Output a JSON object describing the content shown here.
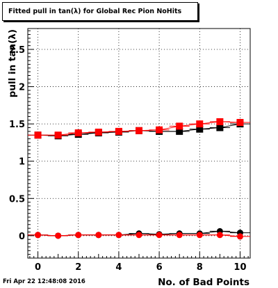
{
  "chart_data": {
    "type": "scatter",
    "title": "Fitted pull in tan(λ) for Global Rec Pion NoHits",
    "xlabel": "No. of Bad Points",
    "ylabel": "pull in tan(λ)",
    "xlim": [
      -0.5,
      10.5
    ],
    "ylim": [
      -0.3,
      2.78
    ],
    "x_ticks": [
      0,
      2,
      4,
      6,
      8,
      10
    ],
    "x_tick_labels": [
      "0",
      "2",
      "4",
      "6",
      "8",
      "10"
    ],
    "y_ticks": [
      0,
      0.5,
      1,
      1.5,
      2,
      2.5
    ],
    "y_tick_labels": [
      "0",
      "0.5",
      "1",
      "1.5",
      "2",
      "2.5"
    ],
    "grid": true,
    "legend": "none",
    "x": [
      0,
      1,
      2,
      3,
      4,
      5,
      6,
      7,
      8,
      9,
      10
    ],
    "series": [
      {
        "marker": "square",
        "color": "#000000",
        "values": [
          1.35,
          1.34,
          1.36,
          1.38,
          1.39,
          1.41,
          1.4,
          1.4,
          1.43,
          1.45,
          1.5
        ]
      },
      {
        "marker": "square",
        "color": "#ff0000",
        "values": [
          1.35,
          1.35,
          1.38,
          1.39,
          1.4,
          1.41,
          1.42,
          1.47,
          1.5,
          1.53,
          1.52
        ]
      },
      {
        "marker": "circle",
        "color": "#000000",
        "values": [
          0.01,
          0.0,
          0.01,
          0.01,
          0.01,
          0.03,
          0.02,
          0.03,
          0.03,
          0.06,
          0.04
        ]
      },
      {
        "marker": "circle",
        "color": "#ff0000",
        "values": [
          0.01,
          0.0,
          0.01,
          0.01,
          0.01,
          0.01,
          0.01,
          0.01,
          0.01,
          0.01,
          -0.01
        ]
      }
    ]
  },
  "footer": {
    "date": "Fri Apr 22 12:48:08 2016"
  }
}
